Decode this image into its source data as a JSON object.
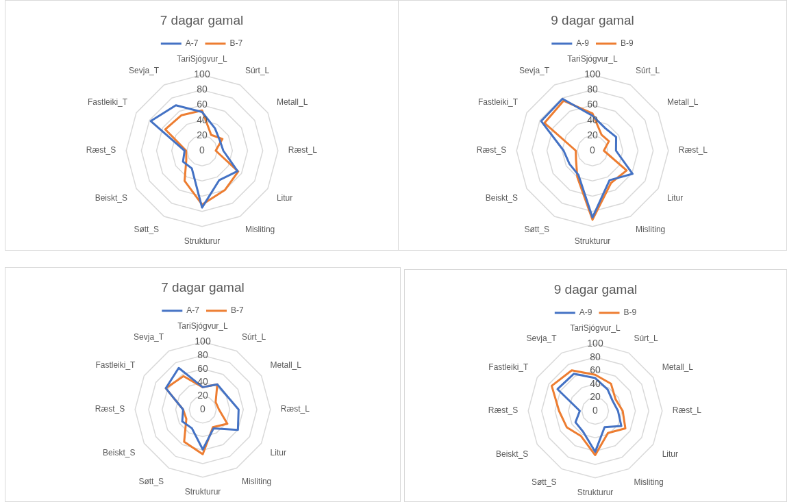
{
  "chart_data": [
    {
      "type": "radar",
      "title": "7 dagar gamal",
      "categories": [
        "TariSjógvur_L",
        "Súrt_L",
        "Metall_L",
        "Ræst_L",
        "Litur",
        "Misliting",
        "Strukturur",
        "Søtt_S",
        "Beiskt_S",
        "Ræst_S",
        "Fastleiki_T",
        "Sevja_T"
      ],
      "ylim": [
        0,
        100
      ],
      "yticks": [
        0,
        20,
        40,
        60,
        80,
        100
      ],
      "grid": true,
      "legend": "top",
      "marker": "none",
      "series": [
        {
          "name": "A-7",
          "color": "#4472c4",
          "values": [
            51,
            34,
            27,
            28,
            54,
            45,
            75,
            27,
            29,
            23,
            78,
            69
          ]
        },
        {
          "name": "B-7",
          "color": "#ed7d31",
          "values": [
            53,
            24,
            31,
            18,
            55,
            60,
            71,
            46,
            24,
            21,
            56,
            54
          ]
        }
      ]
    },
    {
      "type": "radar",
      "title": "9 dagar gamal",
      "categories": [
        "TariSjógvur_L",
        "Súrt_L",
        "Metall_L",
        "Ræst_L",
        "Litur",
        "Misliting",
        "Strukturur",
        "Søtt_S",
        "Beiskt_S",
        "Ræst_S",
        "Fastleiki_T",
        "Sevja_T"
      ],
      "ylim": [
        0,
        100
      ],
      "yticks": [
        0,
        20,
        40,
        60,
        80,
        100
      ],
      "grid": true,
      "legend": "top",
      "marker": "none",
      "series": [
        {
          "name": "A-9",
          "color": "#4472c4",
          "values": [
            46,
            34,
            36,
            31,
            61,
            45,
            88,
            37,
            35,
            38,
            78,
            79
          ]
        },
        {
          "name": "B-9",
          "color": "#ed7d31",
          "values": [
            49,
            24,
            25,
            15,
            52,
            49,
            91,
            40,
            25,
            22,
            73,
            76
          ]
        }
      ]
    },
    {
      "type": "radar",
      "title": "7 dagar gamal",
      "categories": [
        "TariSjógvur_L",
        "Súrt_L",
        "Metall_L",
        "Ræst_L",
        "Litur",
        "Misliting",
        "Strukturur",
        "Søtt_S",
        "Beiskt_S",
        "Ræst_S",
        "Fastleiki_T",
        "Sevja_T"
      ],
      "ylim": [
        0,
        100
      ],
      "yticks": [
        0,
        20,
        40,
        60,
        80,
        100
      ],
      "grid": true,
      "legend": "top",
      "marker": "none",
      "series": [
        {
          "name": "A-7",
          "color": "#4472c4",
          "values": [
            33,
            43,
            41,
            53,
            60,
            32,
            59,
            32,
            35,
            29,
            63,
            71
          ]
        },
        {
          "name": "B-7",
          "color": "#ed7d31",
          "values": [
            33,
            43,
            22,
            24,
            42,
            30,
            66,
            55,
            28,
            29,
            63,
            57
          ]
        }
      ]
    },
    {
      "type": "radar",
      "title": "9 dagar gamal",
      "categories": [
        "TariSjógvur_L",
        "Súrt_L",
        "Metall_L",
        "Ræst_L",
        "Litur",
        "Misliting",
        "Strukturur",
        "Søtt_S",
        "Beiskt_S",
        "Ræst_S",
        "Fastleiki_T",
        "Sevja_T"
      ],
      "ylim": [
        0,
        100
      ],
      "yticks": [
        0,
        20,
        40,
        60,
        80,
        100
      ],
      "grid": true,
      "legend": "top",
      "marker": "none",
      "series": [
        {
          "name": "A-9",
          "color": "#4472c4",
          "values": [
            49,
            37,
            30,
            34,
            45,
            28,
            61,
            36,
            34,
            23,
            65,
            64
          ]
        },
        {
          "name": "B-9",
          "color": "#ed7d31",
          "values": [
            54,
            47,
            35,
            41,
            52,
            38,
            66,
            43,
            49,
            54,
            75,
            70
          ]
        }
      ]
    }
  ]
}
